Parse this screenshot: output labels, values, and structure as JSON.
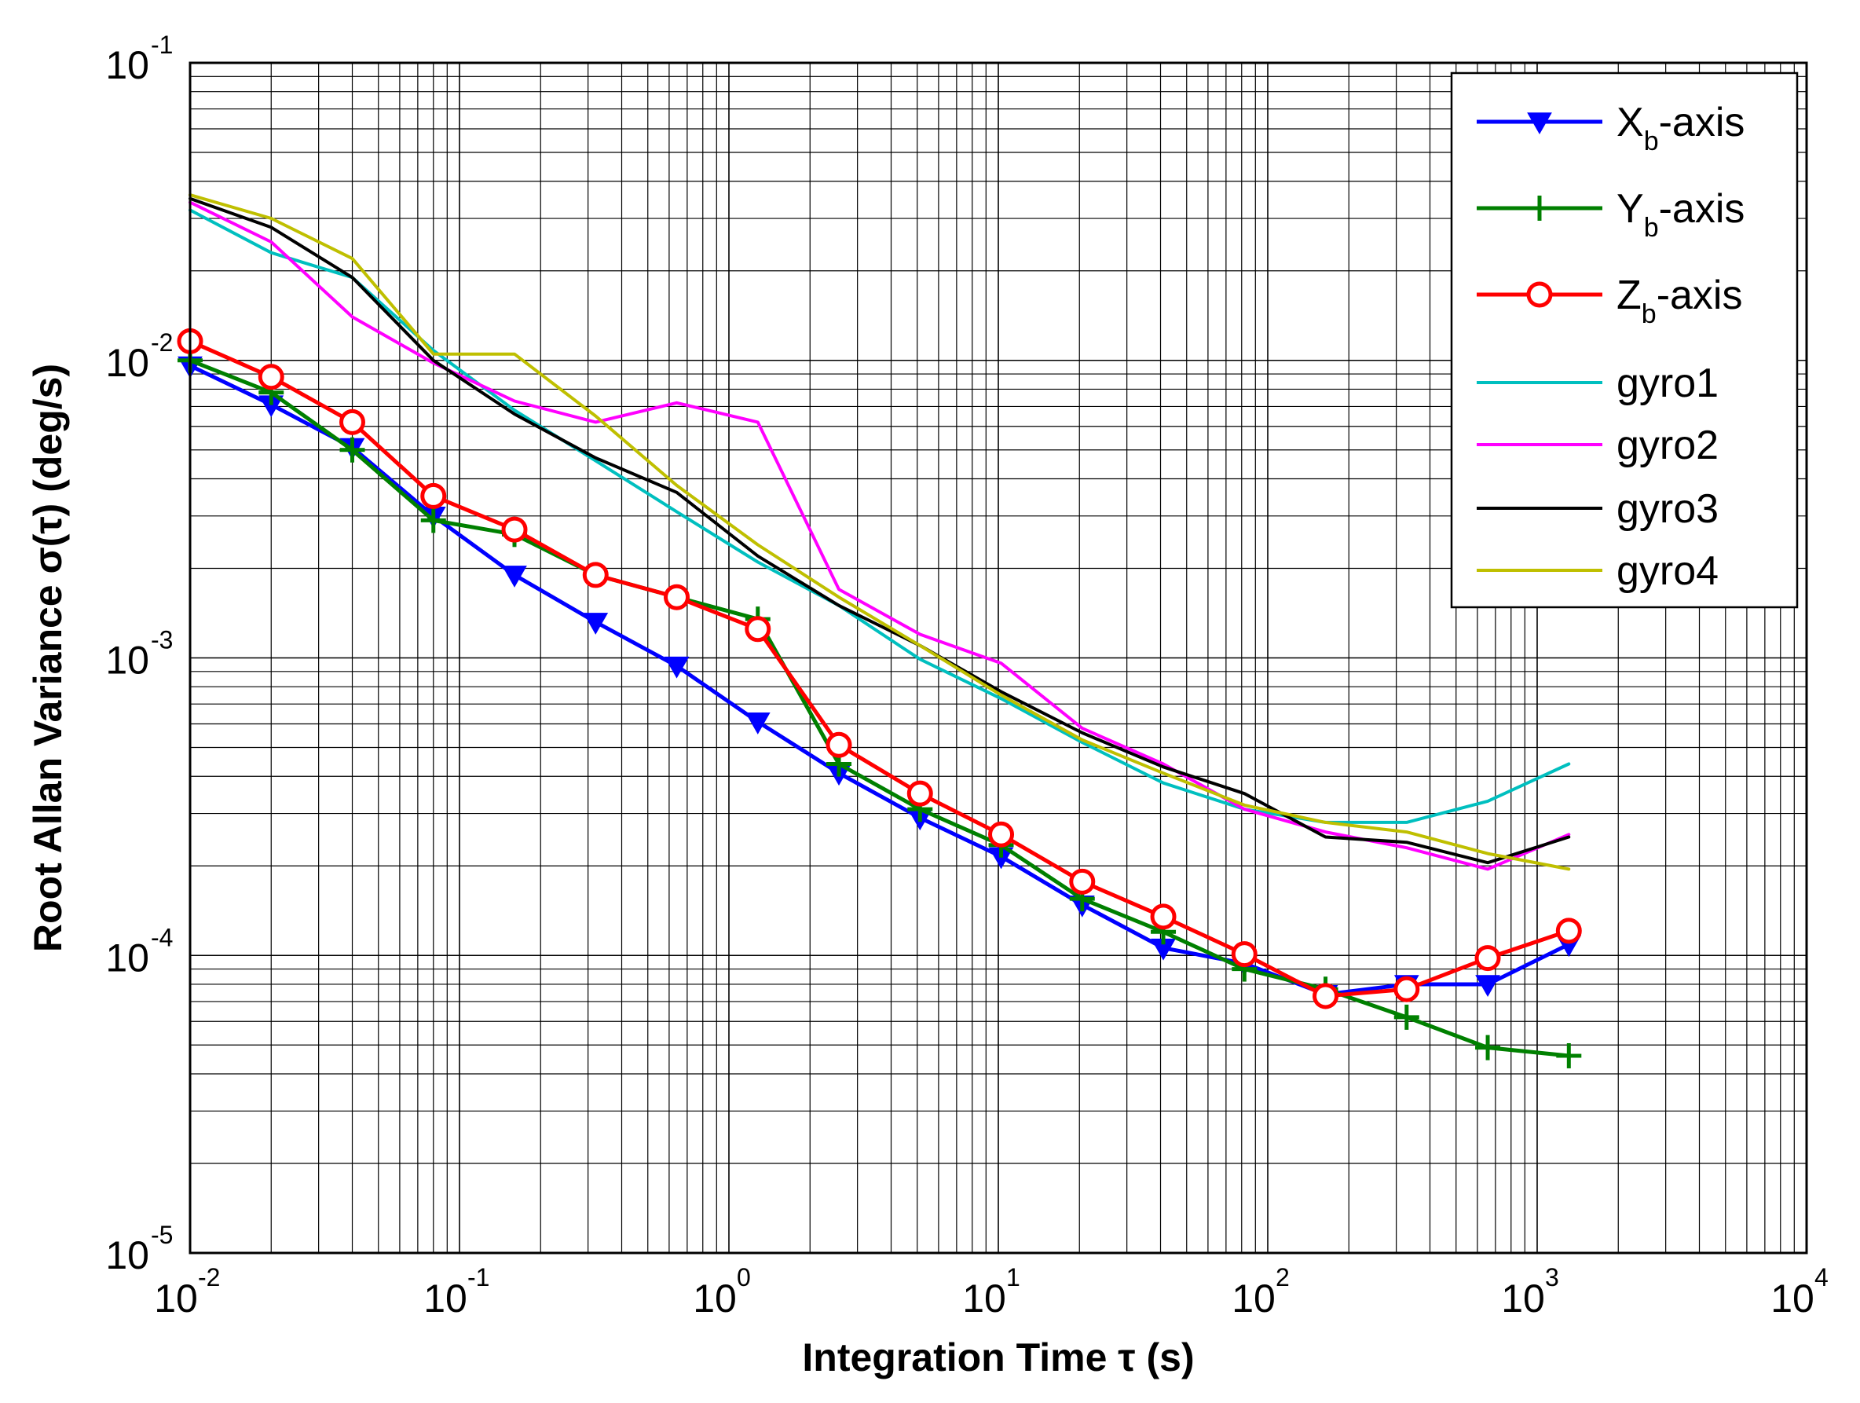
{
  "chart_data": {
    "type": "line",
    "title": "",
    "xlabel": "Integration Time τ (s)",
    "ylabel": "Root Allan Variance σ(τ) (deg/s)",
    "xscale": "log",
    "yscale": "log",
    "xlim": [
      0.01,
      10000
    ],
    "ylim": [
      1e-05,
      0.1
    ],
    "grid": true,
    "legend_position": "top-right",
    "x_ticks": [
      {
        "base": "10",
        "exp": "-2"
      },
      {
        "base": "10",
        "exp": "-1"
      },
      {
        "base": "10",
        "exp": "0"
      },
      {
        "base": "10",
        "exp": "1"
      },
      {
        "base": "10",
        "exp": "2"
      },
      {
        "base": "10",
        "exp": "3"
      },
      {
        "base": "10",
        "exp": "4"
      }
    ],
    "y_ticks": [
      {
        "base": "10",
        "exp": "-5"
      },
      {
        "base": "10",
        "exp": "-4"
      },
      {
        "base": "10",
        "exp": "-3"
      },
      {
        "base": "10",
        "exp": "-2"
      },
      {
        "base": "10",
        "exp": "-1"
      }
    ],
    "series": [
      {
        "name": "Xb-axis",
        "label_main": "X",
        "label_sub": "b",
        "label_suffix": "-axis",
        "color": "#0000FF",
        "marker": "triangle-down",
        "line_width": 5,
        "x": [
          0.01,
          0.02,
          0.04,
          0.08,
          0.16,
          0.32,
          0.64,
          1.28,
          2.56,
          5.12,
          10.24,
          20.48,
          40.96,
          81.92,
          163.84,
          327.68,
          655.36,
          1310.72
        ],
        "y": [
          0.0096,
          0.0071,
          0.0051,
          0.003,
          0.0019,
          0.00132,
          0.00094,
          0.00061,
          0.00041,
          0.00029,
          0.000215,
          0.000148,
          0.000106,
          9.4e-05,
          7.4e-05,
          8e-05,
          8e-05,
          0.000109
        ]
      },
      {
        "name": "Yb-axis",
        "label_main": "Y",
        "label_sub": "b",
        "label_suffix": "-axis",
        "color": "#008000",
        "marker": "plus",
        "line_width": 5,
        "x": [
          0.01,
          0.02,
          0.04,
          0.08,
          0.16,
          0.32,
          0.64,
          1.28,
          2.56,
          5.12,
          10.24,
          20.48,
          40.96,
          81.92,
          163.84,
          327.68,
          655.36,
          1310.72
        ],
        "y": [
          0.01,
          0.0078,
          0.005,
          0.0029,
          0.0026,
          0.0019,
          0.0016,
          0.00135,
          0.00044,
          0.00031,
          0.000235,
          0.000155,
          0.00012,
          9e-05,
          7.7e-05,
          6.2e-05,
          4.9e-05,
          4.6e-05
        ]
      },
      {
        "name": "Zb-axis",
        "label_main": "Z",
        "label_sub": "b",
        "label_suffix": "-axis",
        "color": "#FF0000",
        "marker": "circle",
        "line_width": 5,
        "x": [
          0.01,
          0.02,
          0.04,
          0.08,
          0.16,
          0.32,
          0.64,
          1.28,
          2.56,
          5.12,
          10.24,
          20.48,
          40.96,
          81.92,
          163.84,
          327.68,
          655.36,
          1310.72
        ],
        "y": [
          0.0116,
          0.0088,
          0.0062,
          0.0035,
          0.0027,
          0.0019,
          0.0016,
          0.00125,
          0.00051,
          0.00035,
          0.000255,
          0.000177,
          0.000135,
          0.000101,
          7.3e-05,
          7.7e-05,
          9.8e-05,
          0.000121
        ]
      },
      {
        "name": "gyro1",
        "label_main": "gyro1",
        "label_sub": "",
        "label_suffix": "",
        "color": "#00BFBF",
        "marker": "none",
        "line_width": 4,
        "x": [
          0.01,
          0.02,
          0.04,
          0.08,
          0.16,
          0.32,
          0.64,
          1.28,
          2.56,
          5.12,
          10.24,
          20.48,
          40.96,
          81.92,
          163.84,
          327.68,
          655.36,
          1310.72
        ],
        "y": [
          0.032,
          0.023,
          0.019,
          0.0108,
          0.0068,
          0.0046,
          0.0031,
          0.0021,
          0.0015,
          0.00099,
          0.00073,
          0.00052,
          0.00038,
          0.00031,
          0.00028,
          0.00028,
          0.00033,
          0.00044
        ]
      },
      {
        "name": "gyro2",
        "label_main": "gyro2",
        "label_sub": "",
        "label_suffix": "",
        "color": "#FF00FF",
        "marker": "none",
        "line_width": 4,
        "x": [
          0.01,
          0.02,
          0.04,
          0.08,
          0.16,
          0.32,
          0.64,
          1.28,
          2.56,
          5.12,
          10.24,
          20.48,
          40.96,
          81.92,
          163.84,
          327.68,
          655.36,
          1310.72
        ],
        "y": [
          0.034,
          0.025,
          0.014,
          0.0098,
          0.0073,
          0.0062,
          0.0072,
          0.0062,
          0.0017,
          0.0012,
          0.00096,
          0.00058,
          0.00044,
          0.00031,
          0.00026,
          0.00023,
          0.000195,
          0.000255
        ]
      },
      {
        "name": "gyro3",
        "label_main": "gyro3",
        "label_sub": "",
        "label_suffix": "",
        "color": "#000000",
        "marker": "none",
        "line_width": 4,
        "x": [
          0.01,
          0.02,
          0.04,
          0.08,
          0.16,
          0.32,
          0.64,
          1.28,
          2.56,
          5.12,
          10.24,
          20.48,
          40.96,
          81.92,
          163.84,
          327.68,
          655.36,
          1310.72
        ],
        "y": [
          0.035,
          0.028,
          0.019,
          0.01,
          0.0066,
          0.0047,
          0.0036,
          0.0022,
          0.0015,
          0.0011,
          0.00077,
          0.00056,
          0.00043,
          0.00035,
          0.00025,
          0.00024,
          0.000205,
          0.00025
        ]
      },
      {
        "name": "gyro4",
        "label_main": "gyro4",
        "label_sub": "",
        "label_suffix": "",
        "color": "#BFBF00",
        "marker": "none",
        "line_width": 4,
        "x": [
          0.01,
          0.02,
          0.04,
          0.08,
          0.16,
          0.32,
          0.64,
          1.28,
          2.56,
          5.12,
          10.24,
          20.48,
          40.96,
          81.92,
          163.84,
          327.68,
          655.36,
          1310.72
        ],
        "y": [
          0.036,
          0.03,
          0.022,
          0.0105,
          0.0105,
          0.0065,
          0.0038,
          0.0024,
          0.0016,
          0.0011,
          0.00075,
          0.00053,
          0.00041,
          0.00032,
          0.00028,
          0.00026,
          0.00022,
          0.000195
        ]
      }
    ]
  }
}
